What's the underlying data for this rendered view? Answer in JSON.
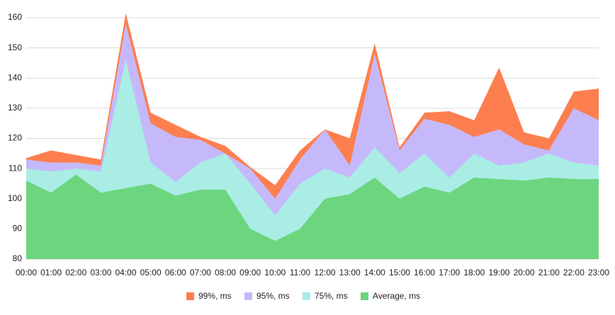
{
  "chart_data": {
    "type": "area",
    "categories": [
      "00:00",
      "01:00",
      "02:00",
      "03:00",
      "04:00",
      "05:00",
      "06:00",
      "07:00",
      "08:00",
      "09:00",
      "10:00",
      "11:00",
      "12:00",
      "13:00",
      "14:00",
      "15:00",
      "16:00",
      "17:00",
      "18:00",
      "19:00",
      "20:00",
      "21:00",
      "22:00",
      "23:00"
    ],
    "series": [
      {
        "name": "99%, ms",
        "color": "#fd7f4f",
        "values": [
          113.5,
          116,
          114.5,
          113,
          161.5,
          128.5,
          124.5,
          120.5,
          117.5,
          110.5,
          104.5,
          116,
          123,
          120,
          151.5,
          117,
          128.5,
          129,
          126,
          143.5,
          122,
          120,
          135.5,
          136.5
        ]
      },
      {
        "name": "95%, ms",
        "color": "#c6b9fb",
        "values": [
          113,
          112,
          112,
          111,
          158,
          125,
          120.5,
          119.5,
          115,
          110,
          100,
          113,
          123,
          111,
          148,
          116,
          126.5,
          124.5,
          120.5,
          123,
          118,
          116,
          130,
          126
        ]
      },
      {
        "name": "75%, ms",
        "color": "#a9ede5",
        "values": [
          110,
          109,
          110,
          109,
          146,
          112,
          105.5,
          112,
          115,
          105,
          94.5,
          105,
          110,
          107,
          117,
          108.5,
          115,
          107,
          115,
          111,
          112,
          115,
          112,
          111
        ]
      },
      {
        "name": "Average, ms",
        "color": "#6cd57d",
        "values": [
          106,
          102,
          108,
          102,
          103.5,
          105,
          101,
          103,
          103,
          90,
          86,
          90,
          100,
          101.5,
          107,
          100,
          104,
          102,
          107,
          106.5,
          106,
          107,
          106.5,
          106.5
        ]
      }
    ],
    "ylim": [
      80,
      160
    ],
    "yticks": [
      80,
      90,
      100,
      110,
      120,
      130,
      140,
      150,
      160
    ],
    "grid": true,
    "legend": "bottom"
  }
}
